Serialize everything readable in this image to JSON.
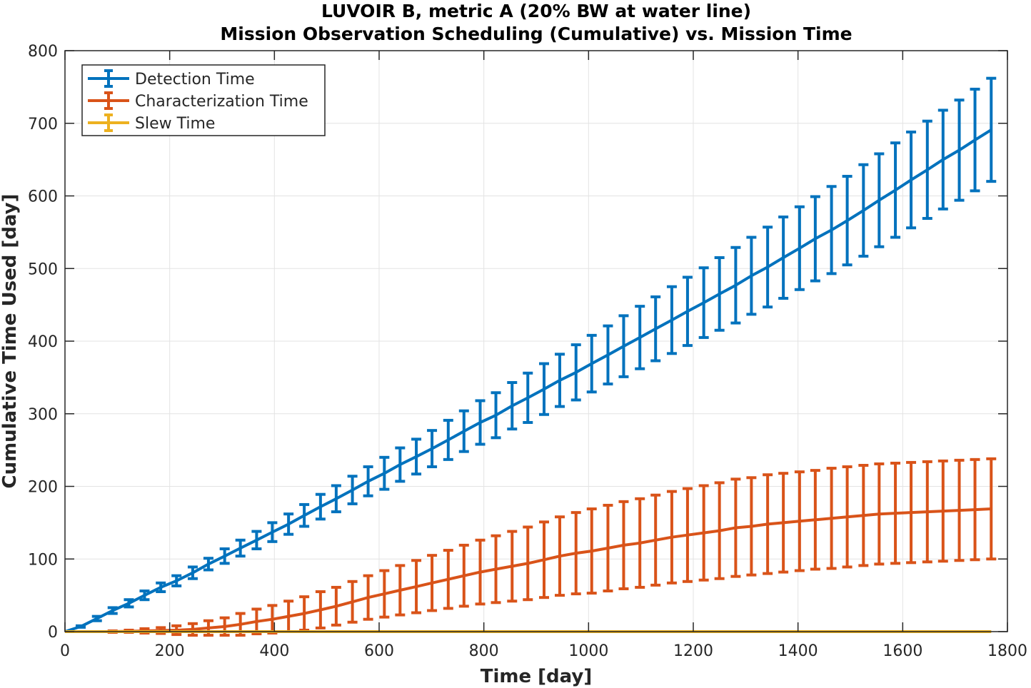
{
  "chart_data": {
    "type": "line",
    "title": "LUVOIR B, metric A (20% BW at water line)",
    "subtitle": "Mission Observation Scheduling (Cumulative) vs. Mission Time",
    "xlabel": "Time [day]",
    "ylabel": "Cumulative Time Used [day]",
    "xlim": [
      0,
      1800
    ],
    "ylim": [
      0,
      800
    ],
    "xticks": [
      0,
      200,
      400,
      600,
      800,
      1000,
      1200,
      1400,
      1600,
      1800
    ],
    "yticks": [
      0,
      100,
      200,
      300,
      400,
      500,
      600,
      700,
      800
    ],
    "grid": true,
    "legend_position": "top-left",
    "series": [
      {
        "name": "Detection Time",
        "color": "#0072BD",
        "x": [
          0,
          30,
          61,
          91,
          122,
          152,
          183,
          213,
          244,
          274,
          305,
          335,
          366,
          396,
          427,
          457,
          488,
          518,
          549,
          579,
          610,
          640,
          671,
          701,
          732,
          762,
          793,
          823,
          854,
          884,
          915,
          945,
          976,
          1006,
          1037,
          1067,
          1098,
          1128,
          1159,
          1189,
          1220,
          1250,
          1281,
          1311,
          1342,
          1372,
          1403,
          1433,
          1464,
          1494,
          1525,
          1555,
          1586,
          1616,
          1647,
          1677,
          1708,
          1738,
          1769
        ],
        "y": [
          0,
          7,
          18,
          29,
          39,
          50,
          61,
          70,
          81,
          93,
          104,
          115,
          126,
          137,
          148,
          160,
          172,
          183,
          195,
          207,
          218,
          230,
          241,
          252,
          264,
          276,
          288,
          298,
          311,
          322,
          334,
          346,
          357,
          369,
          381,
          393,
          405,
          417,
          429,
          441,
          453,
          465,
          477,
          490,
          502,
          515,
          528,
          541,
          553,
          566,
          580,
          594,
          608,
          622,
          636,
          650,
          663,
          677,
          691
        ],
        "err": [
          0,
          1,
          3,
          4,
          5,
          6,
          6,
          7,
          8,
          8,
          10,
          11,
          12,
          13,
          14,
          15,
          17,
          18,
          19,
          20,
          22,
          23,
          24,
          25,
          27,
          28,
          30,
          31,
          32,
          34,
          35,
          36,
          38,
          39,
          40,
          42,
          43,
          44,
          46,
          47,
          48,
          50,
          52,
          53,
          55,
          56,
          57,
          58,
          60,
          61,
          63,
          64,
          65,
          66,
          67,
          68,
          69,
          70,
          71
        ]
      },
      {
        "name": "Characterization Time",
        "color": "#D95319",
        "x": [
          0,
          30,
          61,
          91,
          122,
          152,
          183,
          213,
          244,
          274,
          305,
          335,
          366,
          396,
          427,
          457,
          488,
          518,
          549,
          579,
          610,
          640,
          671,
          701,
          732,
          762,
          793,
          823,
          854,
          884,
          915,
          945,
          976,
          1006,
          1037,
          1067,
          1098,
          1128,
          1159,
          1189,
          1220,
          1250,
          1281,
          1311,
          1342,
          1372,
          1403,
          1433,
          1464,
          1494,
          1525,
          1555,
          1586,
          1616,
          1647,
          1677,
          1708,
          1738,
          1769
        ],
        "y": [
          0,
          0,
          0,
          0,
          0.5,
          1,
          1.5,
          2,
          3,
          5,
          7,
          10,
          14,
          17,
          21,
          25,
          30,
          35,
          41,
          47,
          52,
          57,
          62,
          67,
          72,
          77,
          82,
          86,
          90,
          94,
          99,
          104,
          108,
          111,
          115,
          119,
          122,
          126,
          130,
          133,
          136,
          139,
          143,
          145,
          148,
          150,
          152,
          154,
          156,
          158,
          160,
          162,
          163,
          164,
          165,
          166,
          167,
          168,
          169
        ],
        "err": [
          0,
          0,
          0,
          1,
          1.5,
          3,
          4,
          6,
          8,
          10,
          12,
          15,
          17,
          19,
          21,
          23,
          25,
          26,
          28,
          30,
          32,
          34,
          36,
          38,
          40,
          42,
          44,
          46,
          48,
          50,
          52,
          54,
          56,
          58,
          59,
          60,
          61,
          62,
          63,
          64,
          65,
          66,
          67,
          67,
          68,
          68,
          68,
          68,
          69,
          69,
          69,
          69,
          69,
          69,
          69,
          69,
          69,
          69,
          69
        ]
      },
      {
        "name": "Slew Time",
        "color": "#EDB120",
        "x": [
          0,
          30,
          61,
          91,
          122,
          152,
          183,
          213,
          244,
          274,
          305,
          335,
          366,
          396,
          427,
          457,
          488,
          518,
          549,
          579,
          610,
          640,
          671,
          701,
          732,
          762,
          793,
          823,
          854,
          884,
          915,
          945,
          976,
          1006,
          1037,
          1067,
          1098,
          1128,
          1159,
          1189,
          1220,
          1250,
          1281,
          1311,
          1342,
          1372,
          1403,
          1433,
          1464,
          1494,
          1525,
          1555,
          1586,
          1616,
          1647,
          1677,
          1708,
          1738,
          1769
        ],
        "y": [
          0,
          0,
          0,
          0,
          0,
          0,
          0,
          0,
          0,
          0,
          0,
          0,
          0,
          0,
          0,
          0,
          0,
          0,
          0,
          0,
          0,
          0,
          0,
          0,
          0,
          0,
          0,
          0,
          0,
          0,
          0,
          0,
          0,
          0,
          0,
          0,
          0,
          0,
          0,
          0,
          0,
          0,
          0,
          0,
          0,
          0,
          0,
          0,
          0,
          0,
          0,
          0,
          0,
          0,
          0,
          0,
          0,
          0,
          0
        ],
        "err": [
          0,
          0,
          0,
          0,
          0,
          0,
          0,
          0,
          0,
          0,
          0,
          0,
          0,
          0,
          0,
          0,
          0,
          0,
          0,
          0,
          0,
          0,
          0,
          0,
          0,
          0,
          0,
          0,
          0,
          0,
          0,
          0,
          0,
          0,
          0,
          0,
          0,
          0,
          0,
          0,
          0,
          0,
          0,
          0,
          0,
          0,
          0,
          0,
          0,
          0,
          0,
          0,
          0,
          0,
          0,
          0,
          0,
          0,
          0
        ]
      }
    ]
  }
}
